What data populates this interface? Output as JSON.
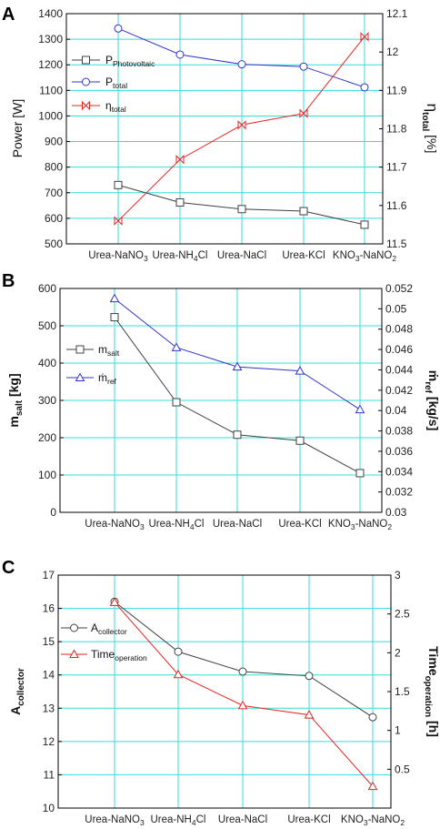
{
  "chart_data": [
    {
      "panel": "A",
      "type": "line",
      "categories": [
        "Urea-NaNO3",
        "Urea-NH4Cl",
        "Urea-NaCl",
        "Urea-KCl",
        "KNO3-NaNO2"
      ],
      "ylabel": "Power [W]",
      "ylabel_right": "ηtotal [%]",
      "ylim": [
        500,
        1400
      ],
      "ylim_right": [
        11.5,
        12.1
      ],
      "yticks": [
        500,
        600,
        700,
        800,
        900,
        1000,
        1100,
        1200,
        1300,
        1400
      ],
      "yticks_right": [
        11.5,
        11.6,
        11.7,
        11.8,
        11.9,
        12,
        12.1
      ],
      "series": [
        {
          "name": "PPhotovoltaic",
          "axis": "left",
          "color": "#404040",
          "marker": "square",
          "values": [
            730,
            662,
            636,
            628,
            575
          ]
        },
        {
          "name": "Ptotal",
          "axis": "left",
          "color": "#3333cc",
          "marker": "circle",
          "values": [
            1342,
            1240,
            1202,
            1193,
            1112
          ]
        },
        {
          "name": "ηtotal",
          "axis": "right",
          "color": "#ee2222",
          "marker": "bowtie",
          "values": [
            11.56,
            11.72,
            11.81,
            11.84,
            12.04
          ]
        }
      ],
      "grid": true,
      "legend_position": "top-left"
    },
    {
      "panel": "B",
      "type": "line",
      "categories": [
        "Urea-NaNO3",
        "Urea-NH4Cl",
        "Urea-NaCl",
        "Urea-KCl",
        "KNO3-NaNO2"
      ],
      "ylabel": "msalt [kg]",
      "ylabel_right": "ṁref [kg/s]",
      "ylim": [
        0,
        600
      ],
      "ylim_right": [
        0.03,
        0.052
      ],
      "yticks": [
        0,
        100,
        200,
        300,
        400,
        500,
        600
      ],
      "yticks_right": [
        0.03,
        0.032,
        0.034,
        0.036,
        0.038,
        0.04,
        0.042,
        0.044,
        0.046,
        0.048,
        0.05,
        0.052
      ],
      "series": [
        {
          "name": "msalt",
          "axis": "left",
          "color": "#404040",
          "marker": "square",
          "values": [
            523,
            295,
            208,
            192,
            105
          ]
        },
        {
          "name": "ṁref",
          "axis": "right",
          "color": "#3333cc",
          "marker": "triangle",
          "values": [
            0.051,
            0.0462,
            0.0443,
            0.0439,
            0.0401
          ]
        }
      ],
      "grid": true,
      "legend_position": "middle-left"
    },
    {
      "panel": "C",
      "type": "line",
      "categories": [
        "Urea-NaNO3",
        "Urea-NH4Cl",
        "Urea-NaCl",
        "Urea-KCl",
        "KNO3-NaNO2"
      ],
      "ylabel": "Acollector",
      "ylabel_right": "Timeoperation [h]",
      "ylim": [
        10,
        17
      ],
      "ylim_right": [
        0,
        3
      ],
      "yticks": [
        10,
        11,
        12,
        13,
        14,
        15,
        16,
        17
      ],
      "yticks_right": [
        0.5,
        1,
        1.5,
        2,
        2.5,
        3
      ],
      "series": [
        {
          "name": "Acollector",
          "axis": "left",
          "color": "#404040",
          "marker": "circle",
          "values": [
            16.2,
            14.7,
            14.1,
            13.97,
            12.73
          ]
        },
        {
          "name": "Timeoperation",
          "axis": "right",
          "color": "#ee2222",
          "marker": "triangle",
          "values": [
            2.65,
            1.72,
            1.32,
            1.2,
            0.28
          ]
        }
      ],
      "grid": true,
      "legend_position": "top-left"
    }
  ],
  "labels": {
    "panel_a": "A",
    "panel_b": "B",
    "panel_c": "C",
    "categories_text": [
      "Urea-NaNO",
      "Urea-NH",
      "Urea-NaCl",
      "Urea-KCl",
      "KNO",
      "-NaNO"
    ],
    "sub_3": "3",
    "sub_4": "4",
    "sub_2": "2",
    "cl": "Cl",
    "a_ylabel": "Power [W]",
    "a_ylabel_right_eta": "η",
    "a_ylabel_right_sub": "total",
    "a_ylabel_right_unit": " [%]",
    "a_leg1_main": "P",
    "a_leg1_sub": "Photovoltaic",
    "a_leg2_main": "P",
    "a_leg2_sub": "total",
    "a_leg3_main": "η",
    "a_leg3_sub": "total",
    "b_ylabel_main": "m",
    "b_ylabel_sub": "salt",
    "b_ylabel_unit": " [kg]",
    "b_ylabel_right_main": "ṁ",
    "b_ylabel_right_sub": "ref",
    "b_ylabel_right_unit": " [kg/s]",
    "b_leg1_main": "m",
    "b_leg1_sub": "salt",
    "b_leg2_main": "ṁ",
    "b_leg2_sub": "ref",
    "c_ylabel_main": "A",
    "c_ylabel_sub": "collector",
    "c_ylabel_right_main": "Time",
    "c_ylabel_right_sub": "operation",
    "c_ylabel_right_unit": " [h]",
    "c_leg1_main": "A",
    "c_leg1_sub": "collector",
    "c_leg2_main": "Time",
    "c_leg2_sub": "operation"
  },
  "colors": {
    "grid": "#33dddd",
    "dark": "#404040",
    "blue": "#3333cc",
    "red": "#ee2222"
  }
}
